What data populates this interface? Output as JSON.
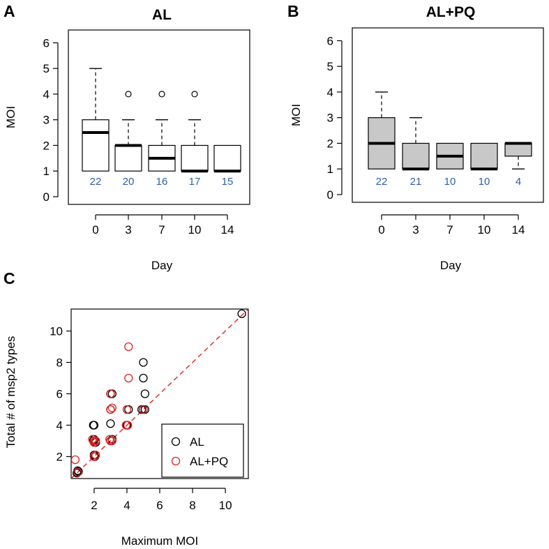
{
  "chart_data": [
    {
      "panel": "A",
      "type": "boxplot",
      "title": "AL",
      "xlabel": "Day",
      "ylabel": "MOI",
      "ylim": [
        -0.3,
        6.5
      ],
      "yticks": [
        "0",
        "1",
        "2",
        "3",
        "4",
        "5",
        "6"
      ],
      "box_fill": "#ffffff",
      "count_color": "#2e5fa8",
      "categories": [
        "0",
        "3",
        "7",
        "10",
        "14"
      ],
      "boxes": [
        {
          "q1": 1,
          "median": 2.5,
          "q3": 3,
          "whisker_low": 1,
          "whisker_high": 5,
          "outliers": [],
          "n": "22"
        },
        {
          "q1": 1,
          "median": 2,
          "q3": 2,
          "whisker_low": 1,
          "whisker_high": 3,
          "outliers": [
            4
          ],
          "n": "20"
        },
        {
          "q1": 1,
          "median": 1.5,
          "q3": 2,
          "whisker_low": 1,
          "whisker_high": 3,
          "outliers": [
            4
          ],
          "n": "16"
        },
        {
          "q1": 1,
          "median": 1,
          "q3": 2,
          "whisker_low": 1,
          "whisker_high": 3,
          "outliers": [
            4
          ],
          "n": "17"
        },
        {
          "q1": 1,
          "median": 1,
          "q3": 2,
          "whisker_low": 1,
          "whisker_high": 2,
          "outliers": [],
          "n": "15"
        }
      ]
    },
    {
      "panel": "B",
      "type": "boxplot",
      "title": "AL+PQ",
      "xlabel": "Day",
      "ylabel": "MOI",
      "ylim": [
        -0.3,
        6.5
      ],
      "yticks": [
        "0",
        "1",
        "2",
        "3",
        "4",
        "5",
        "6"
      ],
      "box_fill": "#c8c8c8",
      "count_color": "#2e5fa8",
      "categories": [
        "0",
        "3",
        "7",
        "10",
        "14"
      ],
      "boxes": [
        {
          "q1": 1,
          "median": 2,
          "q3": 3,
          "whisker_low": 1,
          "whisker_high": 4,
          "outliers": [],
          "n": "22"
        },
        {
          "q1": 1,
          "median": 1,
          "q3": 2,
          "whisker_low": 1,
          "whisker_high": 3,
          "outliers": [],
          "n": "21"
        },
        {
          "q1": 1,
          "median": 1.5,
          "q3": 2,
          "whisker_low": 1,
          "whisker_high": 2,
          "outliers": [],
          "n": "10"
        },
        {
          "q1": 1,
          "median": 1,
          "q3": 2,
          "whisker_low": 1,
          "whisker_high": 2,
          "outliers": [],
          "n": "10"
        },
        {
          "q1": 1.5,
          "median": 2,
          "q3": 2,
          "whisker_low": 1,
          "whisker_high": 2,
          "outliers": [],
          "n": "4"
        }
      ]
    },
    {
      "panel": "C",
      "type": "scatter",
      "xlabel": "Maximum MOI",
      "ylabel": "Total # of msp2 types",
      "xlim": [
        0.6,
        11.4
      ],
      "ylim": [
        0.6,
        11.4
      ],
      "xticks": [
        "2",
        "4",
        "6",
        "8",
        "10"
      ],
      "yticks": [
        "2",
        "4",
        "6",
        "8",
        "10"
      ],
      "reference_line": {
        "slope": 1,
        "intercept": 0,
        "style": "dashed",
        "color": "#e02020"
      },
      "series": [
        {
          "name": "AL",
          "color": "#000000",
          "points": [
            [
              1,
              1
            ],
            [
              1.05,
              1.05
            ],
            [
              0.95,
              0.95
            ],
            [
              1,
              1.1
            ],
            [
              2,
              4
            ],
            [
              1.95,
              4
            ],
            [
              2,
              2
            ],
            [
              2.05,
              2
            ],
            [
              2,
              2.1
            ],
            [
              1.95,
              3
            ],
            [
              2.1,
              2.9
            ],
            [
              2,
              3.1
            ],
            [
              3,
              6
            ],
            [
              3.1,
              6
            ],
            [
              3,
              5
            ],
            [
              3,
              4.1
            ],
            [
              3,
              3
            ],
            [
              3.1,
              3.1
            ],
            [
              4,
              4
            ],
            [
              4.1,
              5
            ],
            [
              4,
              4
            ],
            [
              5,
              8
            ],
            [
              5,
              7
            ],
            [
              5.1,
              6
            ],
            [
              5,
              5
            ],
            [
              5.1,
              5
            ],
            [
              4.9,
              5
            ],
            [
              11,
              11.1
            ]
          ]
        },
        {
          "name": "AL+PQ",
          "color": "#e02020",
          "points": [
            [
              0.85,
              1.8
            ],
            [
              1,
              1
            ],
            [
              2,
              3
            ],
            [
              1.9,
              3.1
            ],
            [
              2.1,
              3
            ],
            [
              2,
              2
            ],
            [
              2.1,
              2.1
            ],
            [
              2,
              2.9
            ],
            [
              3,
              6
            ],
            [
              3.1,
              5.1
            ],
            [
              3,
              5
            ],
            [
              3,
              3
            ],
            [
              2.95,
              3.1
            ],
            [
              3.1,
              3
            ],
            [
              4.1,
              9
            ],
            [
              4.1,
              7
            ],
            [
              4,
              5
            ],
            [
              3.95,
              4
            ],
            [
              4.05,
              4
            ],
            [
              5,
              5
            ]
          ]
        }
      ]
    }
  ]
}
